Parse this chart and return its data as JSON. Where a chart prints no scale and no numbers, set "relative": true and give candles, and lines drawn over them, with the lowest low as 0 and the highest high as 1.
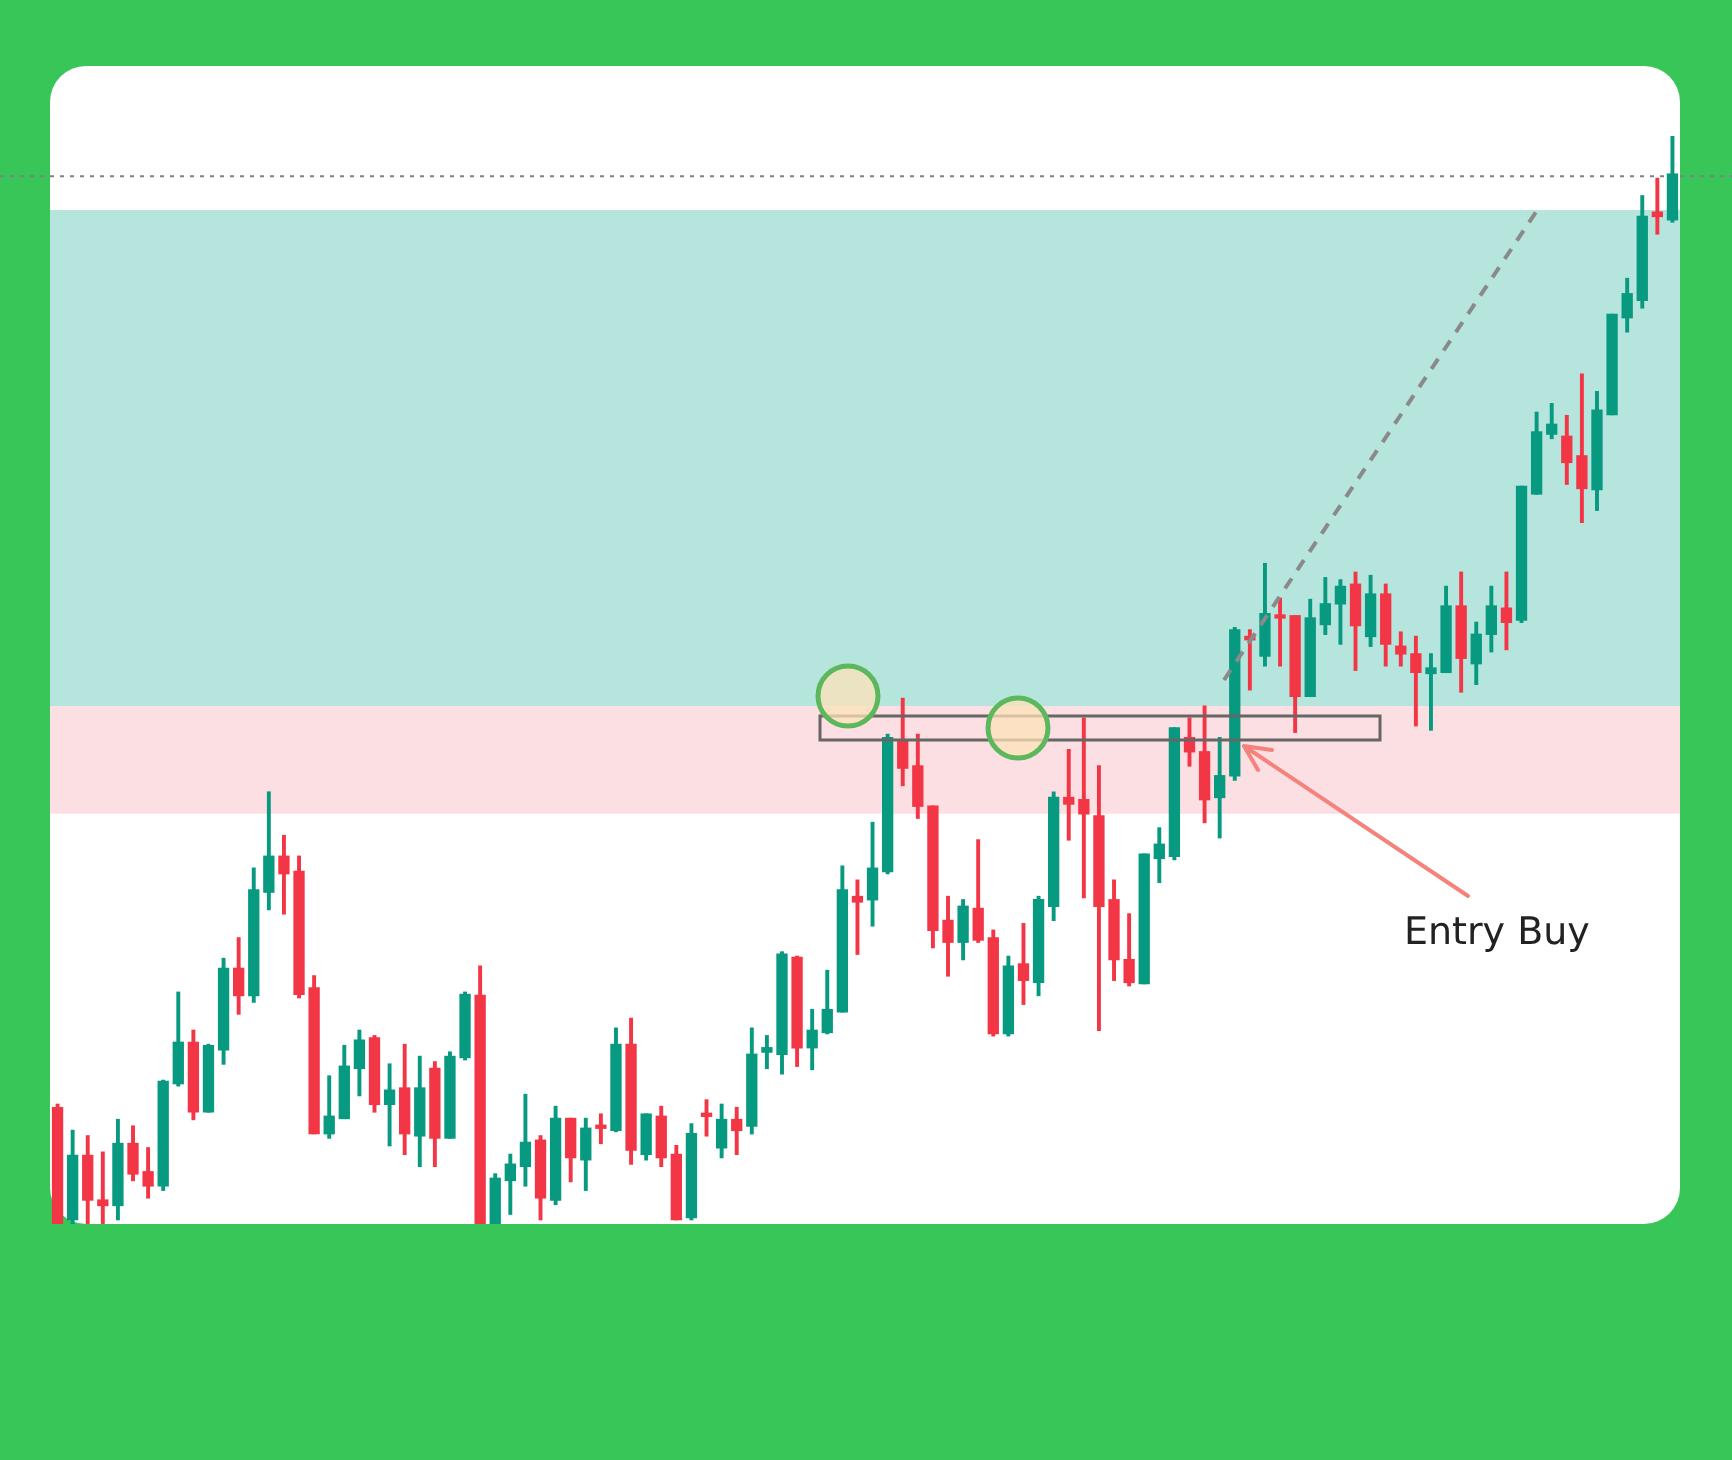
{
  "chart_data": {
    "type": "candlestick",
    "categories": [
      null,
      null,
      null,
      null,
      null,
      null,
      null,
      null,
      null,
      null,
      null,
      null,
      null,
      null,
      null,
      null,
      null,
      null,
      null,
      null,
      null,
      null,
      null,
      null,
      null,
      null,
      null,
      null,
      null,
      null,
      null,
      null,
      null,
      null,
      null,
      null,
      null,
      null,
      null,
      null,
      null,
      null,
      null,
      null,
      null,
      null,
      null,
      null,
      null,
      null,
      null,
      null,
      null,
      null,
      null,
      null,
      null,
      null,
      null,
      null,
      null,
      null,
      null,
      null,
      null,
      null,
      null,
      null,
      null,
      null,
      null,
      null,
      null,
      null,
      null,
      null,
      null,
      null,
      null,
      null,
      null,
      null,
      null,
      null,
      null,
      null,
      null,
      null,
      null,
      null,
      null,
      null,
      null,
      null,
      null,
      null,
      null,
      null,
      null,
      null,
      null,
      null,
      null,
      null,
      null,
      null,
      null,
      null
    ],
    "ohlc": [
      [
        0.107,
        0.11,
        0,
        0
      ],
      [
        0.004,
        0.086,
        0,
        0.063
      ],
      [
        0.063,
        0.081,
        0,
        0.022
      ],
      [
        0.022,
        0.066,
        0,
        0.017
      ],
      [
        0.017,
        0.096,
        0.004,
        0.074
      ],
      [
        0.074,
        0.09,
        0.04,
        0.046
      ],
      [
        0.048,
        0.07,
        0.024,
        0.035
      ],
      [
        0.035,
        0.132,
        0.031,
        0.131
      ],
      [
        0.129,
        0.213,
        0.127,
        0.167
      ],
      [
        0.167,
        0.178,
        0.096,
        0.103
      ],
      [
        0.103,
        0.165,
        0.103,
        0.164
      ],
      [
        0.16,
        0.244,
        0.147,
        0.235
      ],
      [
        0.235,
        0.263,
        0.193,
        0.21
      ],
      [
        0.21,
        0.327,
        0.204,
        0.307
      ],
      [
        0.305,
        0.397,
        0.289,
        0.338
      ],
      [
        0.338,
        0.357,
        0.285,
        0.322
      ],
      [
        0.324,
        0.338,
        0.208,
        0.211
      ],
      [
        0.217,
        0.228,
        0.083,
        0.083
      ],
      [
        0.083,
        0.136,
        0.079,
        0.099
      ],
      [
        0.097,
        0.164,
        0.097,
        0.145
      ],
      [
        0.143,
        0.178,
        0.118,
        0.169
      ],
      [
        0.171,
        0.173,
        0.103,
        0.11
      ],
      [
        0.11,
        0.147,
        0.072,
        0.123
      ],
      [
        0.125,
        0.165,
        0.064,
        0.083
      ],
      [
        0.081,
        0.154,
        0.053,
        0.125
      ],
      [
        0.143,
        0.149,
        0.053,
        0.079
      ],
      [
        0.079,
        0.158,
        0.079,
        0.154
      ],
      [
        0.153,
        0.213,
        0.151,
        0.211
      ],
      [
        0.21,
        0.237,
        0,
        0
      ],
      [
        0,
        0.046,
        0,
        0.042
      ],
      [
        0.04,
        0.064,
        0.009,
        0.055
      ],
      [
        0.053,
        0.119,
        0.035,
        0.075
      ],
      [
        0.077,
        0.081,
        0.004,
        0.024
      ],
      [
        0.022,
        0.108,
        0.018,
        0.097
      ],
      [
        0.097,
        0.097,
        0.039,
        0.061
      ],
      [
        0.059,
        0.097,
        0.031,
        0.088
      ],
      [
        0.09,
        0.101,
        0.074,
        0.088
      ],
      [
        0.086,
        0.18,
        0.085,
        0.165
      ],
      [
        0.165,
        0.189,
        0.055,
        0.068
      ],
      [
        0.064,
        0.101,
        0.059,
        0.101
      ],
      [
        0.099,
        0.108,
        0.053,
        0.061
      ],
      [
        0.064,
        0.072,
        0.004,
        0.004
      ],
      [
        0.006,
        0.092,
        0.004,
        0.083
      ],
      [
        0.101,
        0.114,
        0.081,
        0.099
      ],
      [
        0.07,
        0.11,
        0.061,
        0.096
      ],
      [
        0.096,
        0.107,
        0.064,
        0.086
      ],
      [
        0.09,
        0.18,
        0.083,
        0.156
      ],
      [
        0.158,
        0.173,
        0.143,
        0.162
      ],
      [
        0.156,
        0.25,
        0.138,
        0.248
      ],
      [
        0.245,
        0.246,
        0.145,
        0.162
      ],
      [
        0.162,
        0.197,
        0.142,
        0.178
      ],
      [
        0.176,
        0.233,
        0.175,
        0.197
      ],
      [
        0.195,
        0.329,
        0.195,
        0.307
      ],
      [
        0.301,
        0.316,
        0.248,
        0.296
      ],
      [
        0.298,
        0.369,
        0.274,
        0.327
      ],
      [
        0.324,
        0.45,
        0.322,
        0.447
      ],
      [
        0.445,
        0.483,
        0.403,
        0.419
      ],
      [
        0.421,
        0.45,
        0.373,
        0.384
      ],
      [
        0.384,
        0.384,
        0.254,
        0.27
      ],
      [
        0.279,
        0.301,
        0.228,
        0.259
      ],
      [
        0.259,
        0.298,
        0.243,
        0.292
      ],
      [
        0.29,
        0.353,
        0.259,
        0.261
      ],
      [
        0.263,
        0.27,
        0.173,
        0.175
      ],
      [
        0.175,
        0.246,
        0.173,
        0.237
      ],
      [
        0.239,
        0.276,
        0.202,
        0.224
      ],
      [
        0.222,
        0.301,
        0.21,
        0.298
      ],
      [
        0.292,
        0.397,
        0.279,
        0.392
      ],
      [
        0.392,
        0.436,
        0.353,
        0.386
      ],
      [
        0.39,
        0.465,
        0.3,
        0.377
      ],
      [
        0.375,
        0.421,
        0.178,
        0.292
      ],
      [
        0.298,
        0.316,
        0.224,
        0.243
      ],
      [
        0.243,
        0.285,
        0.219,
        0.222
      ],
      [
        0.221,
        0.34,
        0.221,
        0.34
      ],
      [
        0.336,
        0.364,
        0.314,
        0.349
      ],
      [
        0.338,
        0.456,
        0.335,
        0.456
      ],
      [
        0.447,
        0.465,
        0.421,
        0.434
      ],
      [
        0.434,
        0.476,
        0.369,
        0.39
      ],
      [
        0.392,
        0.447,
        0.355,
        0.412
      ],
      [
        0.412,
        0.548,
        0.408,
        0.546
      ],
      [
        0.54,
        0.546,
        0.491,
        0.537
      ],
      [
        0.522,
        0.607,
        0.513,
        0.561
      ],
      [
        0.559,
        0.575,
        0.513,
        0.557
      ],
      [
        0.559,
        0.559,
        0.452,
        0.485
      ],
      [
        0.485,
        0.574,
        0.485,
        0.557
      ],
      [
        0.551,
        0.594,
        0.542,
        0.57
      ],
      [
        0.57,
        0.592,
        0.533,
        0.586
      ],
      [
        0.588,
        0.599,
        0.509,
        0.55
      ],
      [
        0.54,
        0.596,
        0.531,
        0.579
      ],
      [
        0.579,
        0.588,
        0.513,
        0.533
      ],
      [
        0.531,
        0.544,
        0.513,
        0.524
      ],
      [
        0.524,
        0.54,
        0.458,
        0.507
      ],
      [
        0.506,
        0.524,
        0.454,
        0.511
      ],
      [
        0.507,
        0.586,
        0.507,
        0.568
      ],
      [
        0.568,
        0.599,
        0.489,
        0.52
      ],
      [
        0.515,
        0.553,
        0.496,
        0.542
      ],
      [
        0.542,
        0.586,
        0.526,
        0.568
      ],
      [
        0.566,
        0.599,
        0.528,
        0.553
      ],
      [
        0.555,
        0.678,
        0.553,
        0.678
      ],
      [
        0.671,
        0.746,
        0.671,
        0.728
      ],
      [
        0.726,
        0.754,
        0.722,
        0.735
      ],
      [
        0.724,
        0.743,
        0.68,
        0.7
      ],
      [
        0.706,
        0.781,
        0.645,
        0.676
      ],
      [
        0.675,
        0.765,
        0.656,
        0.748
      ],
      [
        0.744,
        0.836,
        0.744,
        0.836
      ],
      [
        0.833,
        0.869,
        0.82,
        0.855
      ],
      [
        0.849,
        0.945,
        0.842,
        0.926
      ],
      [
        0.93,
        0.961,
        0.91,
        0.926
      ],
      [
        0.923,
        1,
        0.921,
        0.965
      ]
    ],
    "colors": [
      "#f23645",
      "#089981",
      "#f23645",
      "#f23645",
      "#089981",
      "#f23645",
      "#f23645",
      "#089981",
      "#089981",
      "#f23645",
      "#089981",
      "#089981",
      "#f23645",
      "#089981",
      "#089981",
      "#f23645",
      "#f23645",
      "#f23645",
      "#089981",
      "#089981",
      "#089981",
      "#f23645",
      "#089981",
      "#f23645",
      "#089981",
      "#f23645",
      "#089981",
      "#089981",
      "#f23645",
      "#089981",
      "#089981",
      "#089981",
      "#f23645",
      "#089981",
      "#f23645",
      "#089981",
      "#f23645",
      "#089981",
      "#f23645",
      "#089981",
      "#f23645",
      "#f23645",
      "#089981",
      "#f23645",
      "#089981",
      "#f23645",
      "#089981",
      "#089981",
      "#089981",
      "#f23645",
      "#089981",
      "#089981",
      "#089981",
      "#f23645",
      "#089981",
      "#089981",
      "#f23645",
      "#f23645",
      "#f23645",
      "#f23645",
      "#089981",
      "#f23645",
      "#f23645",
      "#089981",
      "#f23645",
      "#089981",
      "#089981",
      "#f23645",
      "#f23645",
      "#f23645",
      "#f23645",
      "#f23645",
      "#089981",
      "#089981",
      "#089981",
      "#f23645",
      "#f23645",
      "#089981",
      "#089981",
      "#f23645",
      "#089981",
      "#f23645",
      "#f23645",
      "#089981",
      "#089981",
      "#089981",
      "#f23645",
      "#089981",
      "#f23645",
      "#f23645",
      "#f23645",
      "#089981",
      "#089981",
      "#f23645",
      "#089981",
      "#089981",
      "#f23645",
      "#089981",
      "#089981",
      "#089981",
      "#f23645",
      "#f23645",
      "#089981",
      "#089981",
      "#089981",
      "#089981",
      "#f23645",
      "#089981"
    ],
    "relative": true,
    "bands": [
      {
        "axis": "y",
        "from": 0.476,
        "to": 0.932,
        "color": "#a8e0d7"
      },
      {
        "axis": "y",
        "from": 0.377,
        "to": 0.476,
        "color": "#fcd9dd"
      }
    ],
    "ref_lines": [
      {
        "axis": "y",
        "value": 0.963,
        "color": "#808080",
        "line_style": "dotted"
      }
    ],
    "annotations": [
      "Entry Buy"
    ]
  }
}
